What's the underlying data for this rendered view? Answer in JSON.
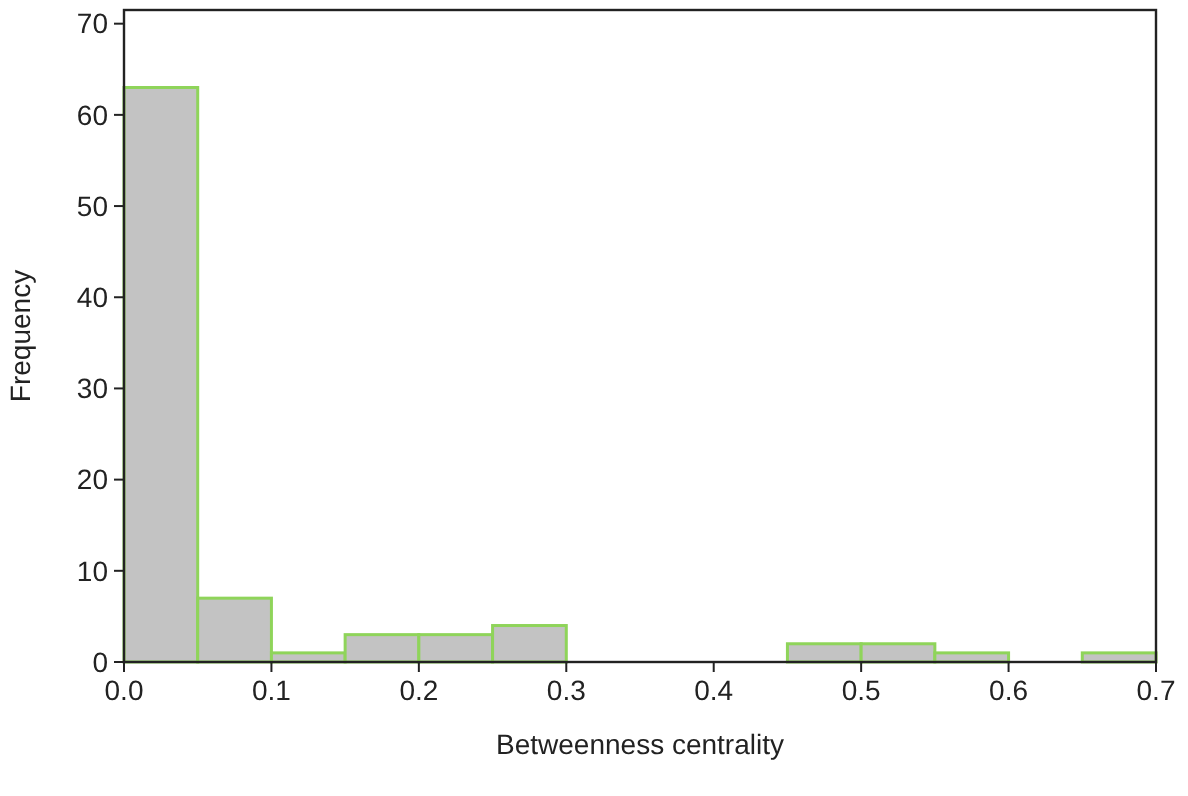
{
  "chart_data": {
    "type": "histogram",
    "xlabel": "Betweenness centrality",
    "ylabel": "Frequency",
    "bins": [
      0,
      0.05,
      0.1,
      0.15,
      0.2,
      0.25,
      0.3,
      0.35,
      0.4,
      0.45,
      0.5,
      0.55,
      0.6,
      0.65,
      0.7
    ],
    "values": [
      63,
      7,
      1,
      3,
      3,
      4,
      0,
      0,
      0,
      2,
      2,
      1,
      0,
      1
    ],
    "color": "#c3c3c3",
    "xlim": [
      0,
      0.7
    ],
    "xticks": [
      {
        "value": 0,
        "label": "0.0"
      },
      0.1,
      0.2,
      0.3,
      0.4,
      0.5,
      0.6,
      0.7
    ],
    "ylim": [
      0,
      71.5
    ],
    "yticks": [
      0,
      10,
      20,
      30,
      40,
      50,
      60,
      70
    ],
    "grid": false
  }
}
